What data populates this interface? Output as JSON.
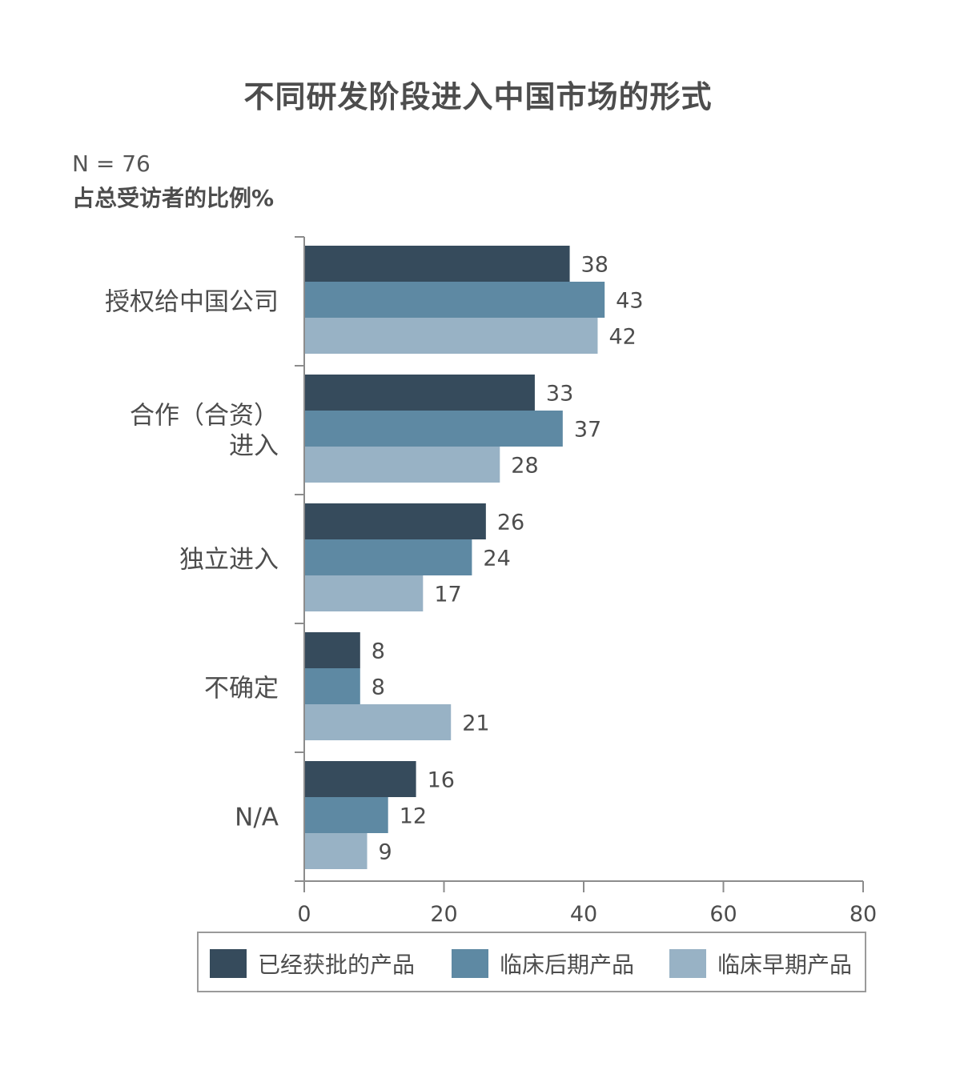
{
  "chart_data": {
    "type": "bar",
    "orientation": "horizontal",
    "title": "不同研发阶段进入中国市场的形式",
    "sample_size": "N = 76",
    "unit_label": "占总受访者的比例%",
    "categories": [
      [
        "授权给中国公司"
      ],
      [
        "合作（合资）",
        "进入"
      ],
      [
        "独立进入"
      ],
      [
        "不确定"
      ],
      [
        "N/A"
      ]
    ],
    "series": [
      {
        "name": "已经获批的产品",
        "color": "#364b5c",
        "values": [
          38,
          33,
          26,
          8,
          16
        ]
      },
      {
        "name": "临床后期产品",
        "color": "#5e89a3",
        "values": [
          43,
          37,
          24,
          8,
          12
        ]
      },
      {
        "name": "临床早期产品",
        "color": "#98b2c5",
        "values": [
          42,
          28,
          17,
          21,
          9
        ]
      }
    ],
    "xlim": [
      0,
      80
    ],
    "x_ticks": [
      0,
      20,
      40,
      60,
      80
    ],
    "grid": false,
    "legend_position": "bottom"
  }
}
